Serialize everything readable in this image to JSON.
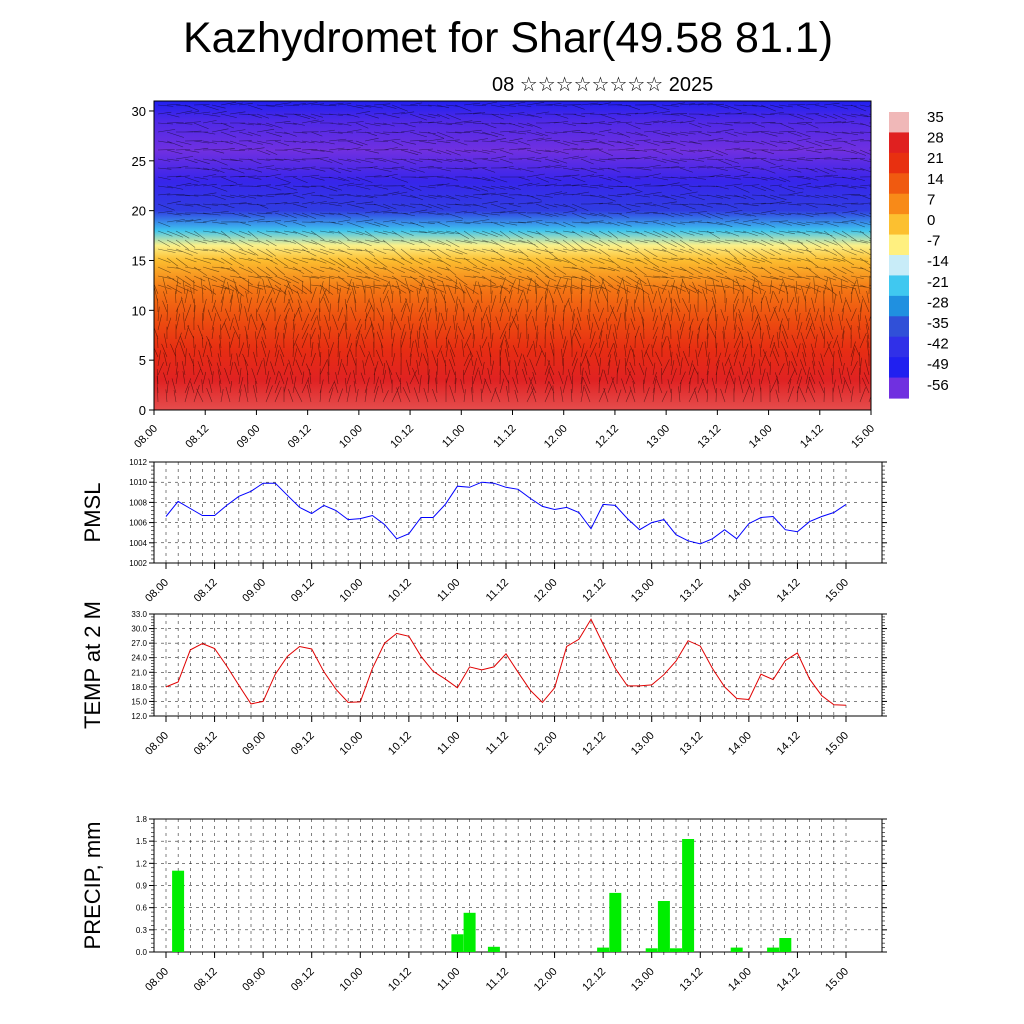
{
  "title": "Kazhydromet for Shar(49.58 81.1)",
  "subtitle": "08 ☆☆☆☆☆☆☆☆ 2025",
  "time_labels": [
    "08.00",
    "08.12",
    "09.00",
    "09.12",
    "10.00",
    "10.12",
    "11.00",
    "11.12",
    "12.00",
    "12.12",
    "13.00",
    "13.12",
    "14.00",
    "14.12",
    "15.00"
  ],
  "chart_data": [
    {
      "type": "heatmap",
      "description_source": "vertical cross-section of temperature with wind barbs",
      "x_labels": [
        "08.00",
        "08.12",
        "09.00",
        "09.12",
        "10.00",
        "10.12",
        "11.00",
        "11.12",
        "12.00",
        "12.12",
        "13.00",
        "13.12",
        "14.00",
        "14.12",
        "15.00"
      ],
      "y_ticks": [
        0,
        5,
        10,
        15,
        20,
        25,
        30
      ],
      "ylim": [
        0,
        31
      ],
      "colorbar_labels": [
        "35",
        "28",
        "21",
        "14",
        "7",
        "0",
        "-7",
        "-14",
        "-21",
        "-28",
        "-35",
        "-42",
        "-49",
        "-56"
      ],
      "colorbar_colors": [
        "#f0b8b8",
        "#e02020",
        "#e83010",
        "#f05a10",
        "#f88a18",
        "#fcc030",
        "#fff080",
        "#c8ecf8",
        "#40c8f0",
        "#2090e0",
        "#3050d8",
        "#3030e8",
        "#2020f0",
        "#7030e0"
      ],
      "temperature_profile": [
        [
          0,
          30
        ],
        [
          3,
          28
        ],
        [
          6,
          22
        ],
        [
          9,
          16
        ],
        [
          12,
          10
        ],
        [
          15,
          0
        ],
        [
          16.5,
          -8
        ],
        [
          18,
          -22
        ],
        [
          20,
          -40
        ],
        [
          23,
          -52
        ],
        [
          26,
          -57
        ],
        [
          29,
          -54
        ],
        [
          31,
          -50
        ]
      ]
    },
    {
      "type": "line",
      "ylabel": "PMSL",
      "ylim": [
        1002,
        1012
      ],
      "y_ticks": [
        "1002",
        "1004",
        "1006",
        "1008",
        "1010",
        "1012"
      ],
      "series": [
        {
          "color": "#0000ff",
          "values": [
            1006.6,
            1008.1,
            1007.4,
            1006.7,
            1006.7,
            1007.7,
            1008.6,
            1009.1,
            1009.9,
            1009.9,
            1008.7,
            1007.5,
            1006.9,
            1007.7,
            1007.2,
            1006.3,
            1006.4,
            1006.7,
            1005.8,
            1004.4,
            1004.9,
            1006.5,
            1006.5,
            1007.8,
            1009.6,
            1009.5,
            1010.0,
            1009.9,
            1009.5,
            1009.3,
            1008.4,
            1007.6,
            1007.3,
            1007.5,
            1007.0,
            1005.4,
            1007.8,
            1007.7,
            1006.4,
            1005.3,
            1006.0,
            1006.3,
            1004.8,
            1004.2,
            1003.9,
            1004.4,
            1005.3,
            1004.4,
            1005.9,
            1006.5,
            1006.6,
            1005.3,
            1005.1,
            1006.1,
            1006.6,
            1007.0,
            1007.8
          ]
        }
      ]
    },
    {
      "type": "line",
      "ylabel": "TEMP at 2 M",
      "ylim": [
        12,
        33
      ],
      "y_ticks": [
        "12.0",
        "15.0",
        "18.0",
        "21.0",
        "24.0",
        "27.0",
        "30.0",
        "33.0"
      ],
      "series": [
        {
          "color": "#e00000",
          "values": [
            18.0,
            19.0,
            25.6,
            26.9,
            25.9,
            22.3,
            18.3,
            14.5,
            15.0,
            20.6,
            24.3,
            26.3,
            25.8,
            21.1,
            17.5,
            14.8,
            14.9,
            21.8,
            27.0,
            29.0,
            28.4,
            24.3,
            21.2,
            19.6,
            17.8,
            22.1,
            21.5,
            22.1,
            24.8,
            21.0,
            17.3,
            14.8,
            17.8,
            26.3,
            27.8,
            31.9,
            26.8,
            21.8,
            18.2,
            18.2,
            18.4,
            20.5,
            23.3,
            27.5,
            26.4,
            21.8,
            18.0,
            15.6,
            15.4,
            20.6,
            19.5,
            23.4,
            25.0,
            19.6,
            16.2,
            14.3,
            14.2
          ]
        }
      ]
    },
    {
      "type": "bar",
      "ylabel": "PRECIP, mm",
      "ylim": [
        0,
        1.8
      ],
      "y_ticks": [
        "0.0",
        "0.3",
        "0.6",
        "0.9",
        "1.2",
        "1.5",
        "1.8"
      ],
      "color": "#00ee00",
      "values": [
        0,
        1.1,
        0,
        0,
        0,
        0,
        0,
        0,
        0,
        0,
        0,
        0,
        0,
        0,
        0,
        0,
        0,
        0,
        0,
        0,
        0,
        0,
        0,
        0,
        0.24,
        0.53,
        0,
        0.07,
        0,
        0,
        0,
        0,
        0,
        0,
        0,
        0,
        0.06,
        0.8,
        0,
        0,
        0.05,
        0.69,
        0.05,
        1.53,
        0,
        0,
        0,
        0.06,
        0,
        0,
        0.06,
        0.19,
        0,
        0,
        0,
        0,
        0
      ]
    }
  ]
}
